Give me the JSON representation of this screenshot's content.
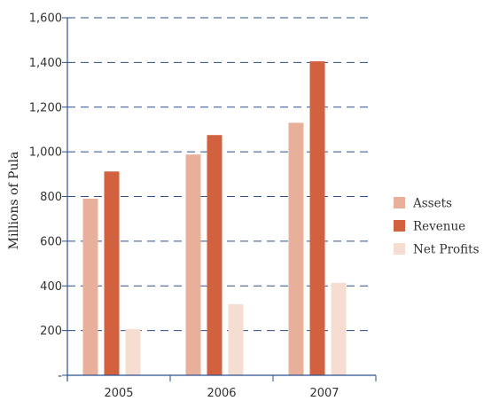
{
  "chart_data": {
    "type": "bar",
    "title": "",
    "xlabel": "",
    "ylabel": "Millions of Pula",
    "categories": [
      "2005",
      "2006",
      "2007"
    ],
    "series": [
      {
        "name": "Assets",
        "values": [
          790,
          988,
          1130
        ],
        "color": "#e8b09a"
      },
      {
        "name": "Revenue",
        "values": [
          912,
          1075,
          1405
        ],
        "color": "#d2613f"
      },
      {
        "name": "Net Profits",
        "values": [
          207,
          318,
          413
        ],
        "color": "#f5ddd2"
      }
    ],
    "ylim": [
      0,
      1600
    ],
    "yticks": [
      {
        "value": 0,
        "label": "-"
      },
      {
        "value": 200,
        "label": "200"
      },
      {
        "value": 400,
        "label": "400"
      },
      {
        "value": 600,
        "label": "600"
      },
      {
        "value": 800,
        "label": "800"
      },
      {
        "value": 1000,
        "label": "1,000"
      },
      {
        "value": 1200,
        "label": "1,200"
      },
      {
        "value": 1400,
        "label": "1,400"
      },
      {
        "value": 1600,
        "label": "1,600"
      }
    ],
    "grid": true,
    "grid_color": "#2b4f8f",
    "axis_color": "#2b4f8f",
    "legend_position": "right"
  }
}
